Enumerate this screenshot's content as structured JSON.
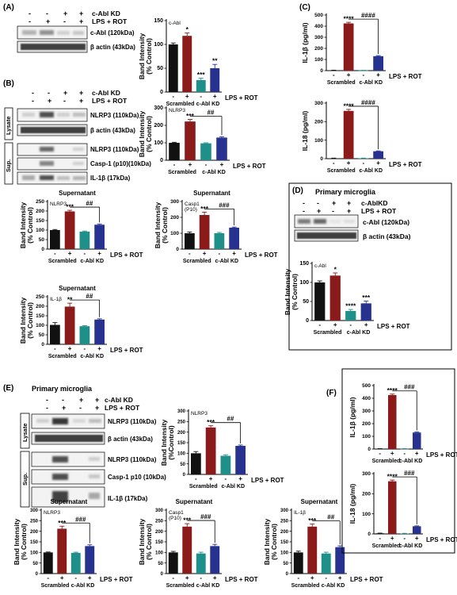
{
  "colors": {
    "ctrl": "#111111",
    "treat": "#8b1a1a",
    "kd": "#1f8f8a",
    "kdtreat": "#27318f"
  },
  "common": {
    "cabl_kd": "c-Abl KD",
    "cablkd_nospace": "c-AblKD",
    "lps_rot": "LPS + ROT",
    "scrambled": "Scrambled",
    "minus": "-",
    "plus": "+",
    "band_ylabel_1": "Band Intensity",
    "band_ylabel_2": "(% Control)",
    "band_ylabel_2b": "(%Control)",
    "lysate": "Lysate",
    "sup": "Sup.",
    "supernatant": "Supernatant",
    "primary_microglia": "Primary microglia",
    "il1b_ylabel": "IL-1β (pg/ml)",
    "il18_ylabel": "IL-18 (pg/ml)"
  },
  "panels": {
    "A": {
      "label": "(A)",
      "blots": [
        "c-Abl (120kDa)",
        "β actin (43kDa)"
      ]
    },
    "B": {
      "label": "(B)",
      "lysate_blots": [
        "NLRP3 (110kDa)",
        "β actin (43kDa)"
      ],
      "sup_blots": [
        "NLRP3 (110kDa)",
        "Casp-1 (p10)(10kDa)",
        "IL-1β (17kDa)"
      ]
    },
    "C": {
      "label": "(C)"
    },
    "D": {
      "label": "(D)",
      "blots": [
        "c-Abl (120kDa)",
        "β actin (43kDa)"
      ]
    },
    "E": {
      "label": "(E)",
      "lysate_blots": [
        "NLRP3 (110kDa)",
        "β actin (43kDa)"
      ],
      "sup_blots": [
        "NLRP3 (110kDa)",
        "Casp-1 p10 (10kDa)",
        "IL-1β (17kDa)"
      ]
    },
    "F": {
      "label": "(F)"
    }
  },
  "chart_data": [
    {
      "id": "A_cabl",
      "type": "bar",
      "categories": [
        "-",
        "+",
        "-",
        "+"
      ],
      "values": [
        100,
        118,
        25,
        50
      ],
      "errors": [
        3,
        6,
        4,
        8
      ],
      "ylim": [
        0,
        150
      ],
      "yticks": [
        0,
        50,
        100,
        150
      ],
      "ylabel": "Band Intensity (% Control)",
      "inset": "c-Abl",
      "stars": [
        "",
        "*",
        "***",
        "**"
      ],
      "hash": null
    },
    {
      "id": "B_nlrp3",
      "type": "bar",
      "categories": [
        "-",
        "+",
        "-",
        "+"
      ],
      "values": [
        100,
        222,
        97,
        130
      ],
      "errors": [
        3,
        12,
        3,
        5
      ],
      "ylim": [
        0,
        300
      ],
      "yticks": [
        0,
        100,
        200,
        300
      ],
      "ylabel": "Band Intensity (% Control)",
      "inset": "NLRP3",
      "stars": [
        "",
        "***",
        "",
        ""
      ],
      "hash": "##"
    },
    {
      "id": "B_sup_nlrp3",
      "type": "bar",
      "categories": [
        "-",
        "+",
        "-",
        "+"
      ],
      "values": [
        100,
        198,
        92,
        128
      ],
      "errors": [
        3,
        6,
        3,
        4
      ],
      "ylim": [
        0,
        250
      ],
      "yticks": [
        0,
        50,
        100,
        150,
        200,
        250
      ],
      "ylabel": "Band Intensity (% Control)",
      "inset": "NLRP3",
      "stars": [
        "",
        "***",
        "",
        ""
      ],
      "hash": "##",
      "title": "Supernatant"
    },
    {
      "id": "B_sup_casp1",
      "type": "bar",
      "categories": [
        "-",
        "+",
        "-",
        "+"
      ],
      "values": [
        100,
        215,
        100,
        135
      ],
      "errors": [
        8,
        18,
        5,
        4
      ],
      "ylim": [
        0,
        300
      ],
      "yticks": [
        0,
        100,
        200,
        300
      ],
      "ylabel": "Band Intensity (% Control)",
      "inset": "Casp1 (P10)",
      "stars": [
        "",
        "***",
        "",
        ""
      ],
      "hash": "###",
      "title": "Supernatant"
    },
    {
      "id": "B_sup_il1b",
      "type": "bar",
      "categories": [
        "-",
        "+",
        "-",
        "+"
      ],
      "values": [
        102,
        198,
        95,
        130
      ],
      "errors": [
        12,
        18,
        3,
        4
      ],
      "ylim": [
        0,
        250
      ],
      "yticks": [
        0,
        50,
        100,
        150,
        200,
        250
      ],
      "ylabel": "Band Intensity (% Control)",
      "inset": "IL-1β",
      "stars": [
        "",
        "**",
        "",
        ""
      ],
      "hash": "##",
      "title": "Supernatant"
    },
    {
      "id": "C_il1b",
      "type": "bar",
      "categories": [
        "-",
        "+",
        "-",
        "+"
      ],
      "values": [
        3,
        425,
        2,
        130
      ],
      "errors": [
        1,
        10,
        1,
        5
      ],
      "ylim": [
        0,
        500
      ],
      "yticks": [
        0,
        100,
        200,
        300,
        400,
        500
      ],
      "ylabel": "IL-1β (pg/ml)",
      "stars": [
        "",
        "****",
        "",
        ""
      ],
      "hash": "####"
    },
    {
      "id": "C_il18",
      "type": "bar",
      "categories": [
        "-",
        "+",
        "-",
        "+"
      ],
      "values": [
        2,
        258,
        2,
        40
      ],
      "errors": [
        1,
        8,
        1,
        2
      ],
      "ylim": [
        0,
        300
      ],
      "yticks": [
        0,
        100,
        200,
        300
      ],
      "ylabel": "IL-18 (pg/ml)",
      "stars": [
        "",
        "****",
        "",
        ""
      ],
      "hash": "####"
    },
    {
      "id": "D_cabl",
      "type": "bar",
      "categories": [
        "-",
        "+",
        "-",
        "+"
      ],
      "values": [
        100,
        118,
        25,
        45
      ],
      "errors": [
        4,
        7,
        4,
        6
      ],
      "ylim": [
        0,
        150
      ],
      "yticks": [
        0,
        50,
        100,
        150
      ],
      "ylabel": "Band Intensity (% Control)",
      "inset": "c-Abl",
      "stars": [
        "",
        "*",
        "****",
        "***"
      ],
      "hash": null
    },
    {
      "id": "E_nlrp3",
      "type": "bar",
      "categories": [
        "-",
        "+",
        "-",
        "+"
      ],
      "values": [
        100,
        222,
        88,
        135
      ],
      "errors": [
        8,
        8,
        5,
        4
      ],
      "ylim": [
        0,
        300
      ],
      "yticks": [
        0,
        50,
        100,
        150,
        200,
        250,
        300
      ],
      "ylabel": "Band Intensity (%Control)",
      "inset": "NLRP3",
      "stars": [
        "",
        "***",
        "",
        ""
      ],
      "hash": "##"
    },
    {
      "id": "E_sup_nlrp3",
      "type": "bar",
      "categories": [
        "-",
        "+",
        "-",
        "+"
      ],
      "values": [
        100,
        212,
        98,
        130
      ],
      "errors": [
        2,
        12,
        3,
        6
      ],
      "ylim": [
        0,
        300
      ],
      "yticks": [
        0,
        50,
        100,
        150,
        200,
        250,
        300
      ],
      "ylabel": "Band Intensity (% Control)",
      "inset": "NLRP3",
      "stars": [
        "",
        "***",
        "",
        ""
      ],
      "hash": "###",
      "title": "Supernatant"
    },
    {
      "id": "E_sup_casp1",
      "type": "bar",
      "categories": [
        "-",
        "+",
        "-",
        "+"
      ],
      "values": [
        100,
        222,
        95,
        130
      ],
      "errors": [
        5,
        14,
        6,
        8
      ],
      "ylim": [
        0,
        300
      ],
      "yticks": [
        0,
        50,
        100,
        150,
        200,
        250,
        300
      ],
      "ylabel": "Band Intensity (% Control)",
      "inset": "Casp1 (P10)",
      "stars": [
        "",
        "***",
        "",
        ""
      ],
      "hash": "###",
      "title": "Supernatant"
    },
    {
      "id": "E_sup_il1b",
      "type": "bar",
      "categories": [
        "-",
        "+",
        "-",
        "+"
      ],
      "values": [
        100,
        222,
        95,
        125
      ],
      "errors": [
        6,
        12,
        6,
        6
      ],
      "ylim": [
        0,
        300
      ],
      "yticks": [
        0,
        50,
        100,
        150,
        200,
        250,
        300
      ],
      "ylabel": "Band Intensity (% Control)",
      "inset": "IL-1β",
      "stars": [
        "",
        "***",
        "",
        ""
      ],
      "hash": "##",
      "title": "Supernatant"
    },
    {
      "id": "F_il1b",
      "type": "bar",
      "categories": [
        "-",
        "+",
        "-",
        "+"
      ],
      "values": [
        2,
        425,
        2,
        130
      ],
      "errors": [
        1,
        8,
        1,
        4
      ],
      "ylim": [
        0,
        500
      ],
      "yticks": [
        0,
        100,
        200,
        300,
        400,
        500
      ],
      "ylabel": "IL-1β (pg/ml)",
      "stars": [
        "",
        "****",
        "",
        ""
      ],
      "hash": "###"
    },
    {
      "id": "F_il18",
      "type": "bar",
      "categories": [
        "-",
        "+",
        "-",
        "+"
      ],
      "values": [
        3,
        262,
        2,
        38
      ],
      "errors": [
        1,
        6,
        1,
        2
      ],
      "ylim": [
        0,
        300
      ],
      "yticks": [
        0,
        100,
        200,
        300
      ],
      "ylabel": "IL-18 (pg/ml)",
      "stars": [
        "",
        "****",
        "",
        ""
      ],
      "hash": "###"
    }
  ]
}
